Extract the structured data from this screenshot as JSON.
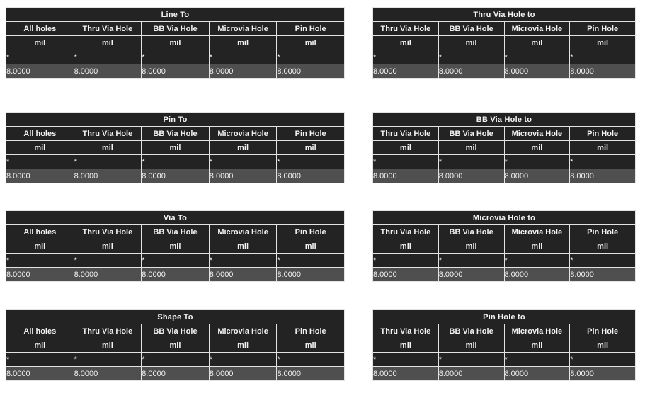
{
  "colors": {
    "cell_bg": "#232323",
    "value_row_bg": "#4f4f4f",
    "border_color": "#e3e3e3",
    "text_color": "#f2f2f2",
    "page_bg": "#ffffff"
  },
  "tables": [
    {
      "id": "line-to",
      "title": "Line To",
      "headers": [
        "All holes",
        "Thru Via Hole",
        "BB Via Hole",
        "Microvia Hole",
        "Pin Hole"
      ],
      "units": [
        "mil",
        "mil",
        "mil",
        "mil",
        "mil"
      ],
      "markers": [
        "*",
        "*",
        "*",
        "*",
        "*"
      ],
      "values": [
        "8.0000",
        "8.0000",
        "8.0000",
        "8.0000",
        "8.0000"
      ]
    },
    {
      "id": "thru-via-hole-to",
      "title": "Thru Via Hole to",
      "headers": [
        "Thru Via Hole",
        "BB Via Hole",
        "Microvia Hole",
        "Pin Hole"
      ],
      "units": [
        "mil",
        "mil",
        "mil",
        "mil"
      ],
      "markers": [
        "*",
        "*",
        "*",
        "*"
      ],
      "values": [
        "8.0000",
        "8.0000",
        "8.0000",
        "8.0000"
      ]
    },
    {
      "id": "pin-to",
      "title": "Pin To",
      "headers": [
        "All holes",
        "Thru Via Hole",
        "BB Via Hole",
        "Microvia Hole",
        "Pin Hole"
      ],
      "units": [
        "mil",
        "mil",
        "mil",
        "mil",
        "mil"
      ],
      "markers": [
        "*",
        "*",
        "*",
        "*",
        "*"
      ],
      "values": [
        "8.0000",
        "8.0000",
        "8.0000",
        "8.0000",
        "8.0000"
      ]
    },
    {
      "id": "bb-via-hole-to",
      "title": "BB Via Hole to",
      "headers": [
        "Thru Via Hole",
        "BB Via Hole",
        "Microvia Hole",
        "Pin Hole"
      ],
      "units": [
        "mil",
        "mil",
        "mil",
        "mil"
      ],
      "markers": [
        "*",
        "*",
        "*",
        "*"
      ],
      "values": [
        "8.0000",
        "8.0000",
        "8.0000",
        "8.0000"
      ]
    },
    {
      "id": "via-to",
      "title": "Via To",
      "headers": [
        "All holes",
        "Thru Via Hole",
        "BB Via Hole",
        "Microvia Hole",
        "Pin Hole"
      ],
      "units": [
        "mil",
        "mil",
        "mil",
        "mil",
        "mil"
      ],
      "markers": [
        "*",
        "*",
        "*",
        "*",
        "*"
      ],
      "values": [
        "8.0000",
        "8.0000",
        "8.0000",
        "8.0000",
        "8.0000"
      ]
    },
    {
      "id": "microvia-hole-to",
      "title": "Microvia Hole to",
      "headers": [
        "Thru Via Hole",
        "BB Via Hole",
        "Microvia Hole",
        "Pin Hole"
      ],
      "units": [
        "mil",
        "mil",
        "mil",
        "mil"
      ],
      "markers": [
        "*",
        "*",
        "*",
        "*"
      ],
      "values": [
        "8.0000",
        "8.0000",
        "8.0000",
        "8.0000"
      ]
    },
    {
      "id": "shape-to",
      "title": "Shape To",
      "headers": [
        "All holes",
        "Thru Via Hole",
        "BB Via Hole",
        "Microvia Hole",
        "Pin Hole"
      ],
      "units": [
        "mil",
        "mil",
        "mil",
        "mil",
        "mil"
      ],
      "markers": [
        "*",
        "*",
        "*",
        "*",
        "*"
      ],
      "values": [
        "8.0000",
        "8.0000",
        "8.0000",
        "8.0000",
        "8.0000"
      ]
    },
    {
      "id": "pin-hole-to",
      "title": "Pin Hole to",
      "headers": [
        "Thru Via Hole",
        "BB Via Hole",
        "Microvia Hole",
        "Pin Hole"
      ],
      "units": [
        "mil",
        "mil",
        "mil",
        "mil"
      ],
      "markers": [
        "*",
        "*",
        "*",
        "*"
      ],
      "values": [
        "8.0000",
        "8.0000",
        "8.0000",
        "8.0000"
      ]
    }
  ]
}
